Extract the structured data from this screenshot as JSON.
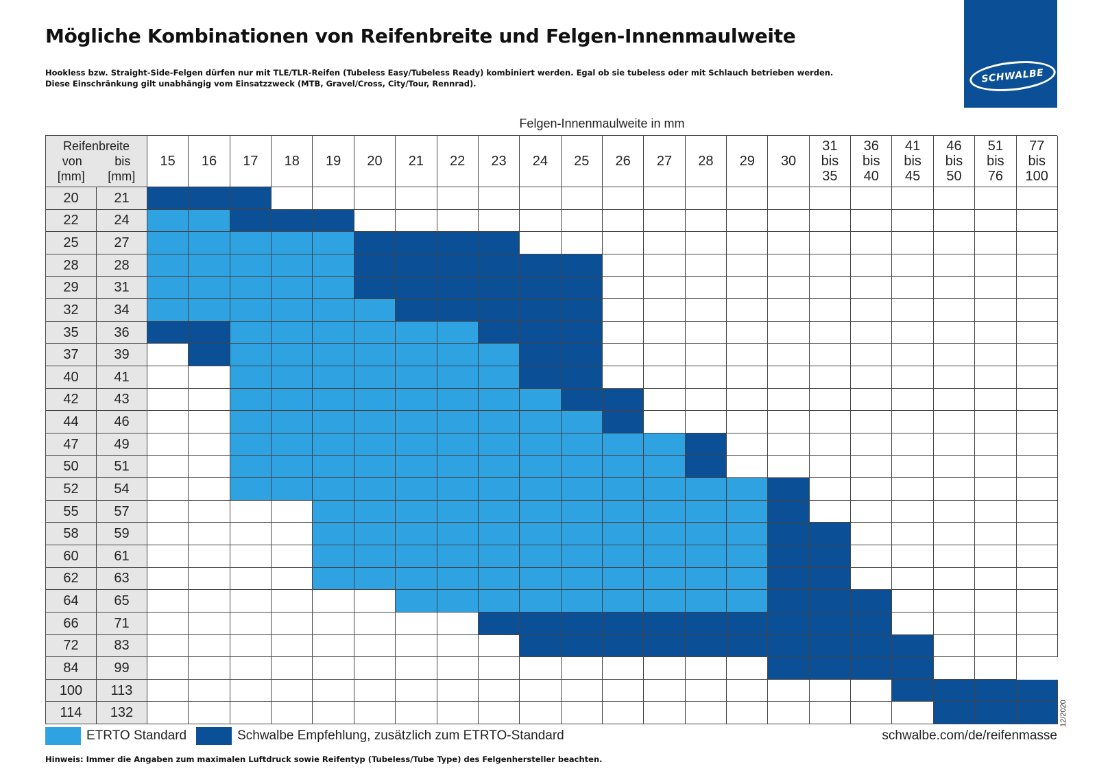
{
  "header": {
    "title": "Mögliche Kombinationen von Reifenbreite und Felgen-Innenmaulweite",
    "intro_line1": "Hookless bzw. Straight-Side-Felgen dürfen nur mit TLE/TLR-Reifen (Tubeless Easy/Tubeless Ready) kombiniert werden. Egal ob sie tubeless oder mit Schlauch betrieben werden.",
    "intro_line2": "Diese Einschränkung gilt unabhängig vom Einsatzzweck (MTB, Gravel/Cross, City/Tour, Rennrad)."
  },
  "logo": {
    "text": "SCHWALBE",
    "color": "#0b4f96"
  },
  "table": {
    "rim_title": "Felgen-Innenmaulweite in mm",
    "corner": {
      "title": "Reifenbreite",
      "von": "von",
      "bis": "bis",
      "unit_von": "[mm]",
      "unit_bis": "[mm]"
    },
    "columns": [
      [
        "15"
      ],
      [
        "16"
      ],
      [
        "17"
      ],
      [
        "18"
      ],
      [
        "19"
      ],
      [
        "20"
      ],
      [
        "21"
      ],
      [
        "22"
      ],
      [
        "23"
      ],
      [
        "24"
      ],
      [
        "25"
      ],
      [
        "26"
      ],
      [
        "27"
      ],
      [
        "28"
      ],
      [
        "29"
      ],
      [
        "30"
      ],
      [
        "31",
        "bis",
        "35"
      ],
      [
        "36",
        "bis",
        "40"
      ],
      [
        "41",
        "bis",
        "45"
      ],
      [
        "46",
        "bis",
        "50"
      ],
      [
        "51",
        "bis",
        "76"
      ],
      [
        "77",
        "bis",
        "100"
      ]
    ],
    "rows": [
      {
        "von": "20",
        "bis": "21",
        "cells": "DDD..................."
      },
      {
        "von": "22",
        "bis": "24",
        "cells": "LLDDD................."
      },
      {
        "von": "25",
        "bis": "27",
        "cells": "LLLLLDDDD............."
      },
      {
        "von": "28",
        "bis": "28",
        "cells": "LLLLLDDDDDD..........."
      },
      {
        "von": "29",
        "bis": "31",
        "cells": "LLLLLDDDDDD..........."
      },
      {
        "von": "32",
        "bis": "34",
        "cells": "LLLLLLDDDDD..........."
      },
      {
        "von": "35",
        "bis": "36",
        "cells": "DDLLLLLLDDD..........."
      },
      {
        "von": "37",
        "bis": "39",
        "cells": ".DLLLLLLLDD..........."
      },
      {
        "von": "40",
        "bis": "41",
        "cells": "..LLLLLLLDD..........."
      },
      {
        "von": "42",
        "bis": "43",
        "cells": "..LLLLLLLLDD.........."
      },
      {
        "von": "44",
        "bis": "46",
        "cells": "..LLLLLLLLLD.........."
      },
      {
        "von": "47",
        "bis": "49",
        "cells": "..LLLLLLLLLLLD........"
      },
      {
        "von": "50",
        "bis": "51",
        "cells": "..LLLLLLLLLLLD........"
      },
      {
        "von": "52",
        "bis": "54",
        "cells": "..LLLLLLLLLLLLLD......"
      },
      {
        "von": "55",
        "bis": "57",
        "cells": "....LLLLLLLLLLLD......"
      },
      {
        "von": "58",
        "bis": "59",
        "cells": "....LLLLLLLLLLLDD....."
      },
      {
        "von": "60",
        "bis": "61",
        "cells": "....LLLLLLLLLLLDD....."
      },
      {
        "von": "62",
        "bis": "63",
        "cells": "....LLLLLLLLLLLDD....."
      },
      {
        "von": "64",
        "bis": "65",
        "cells": "......LLLLLLLLLDDD...."
      },
      {
        "von": "66",
        "bis": "71",
        "cells": "........DDDDDDDDDD...."
      },
      {
        "von": "72",
        "bis": "83",
        "cells": ".........DDDDDDDDDD..."
      },
      {
        "von": "84",
        "bis": "99",
        "cells": "...............DDDD.."
      },
      {
        "von": "100",
        "bis": "113",
        "cells": "..................DDDD"
      },
      {
        "von": "114",
        "bis": "132",
        "cells": "...................DDD"
      }
    ],
    "colors": {
      "L": "#2fa2e2",
      "D": "#0b4f96",
      "label_bg": "#e6e6e6"
    }
  },
  "legend": {
    "light_label": "ETRTO Standard",
    "dark_label": "Schwalbe Empfehlung, zusätzlich zum ETRTO-Standard",
    "url": "schwalbe.com/de/reifenmasse"
  },
  "footer": {
    "note": "Hinweis: Immer die Angaben zum maximalen Luftdruck sowie Reifentyp (Tubeless/Tube Type) des Felgenhersteller beachten.",
    "date": "12/2020"
  }
}
